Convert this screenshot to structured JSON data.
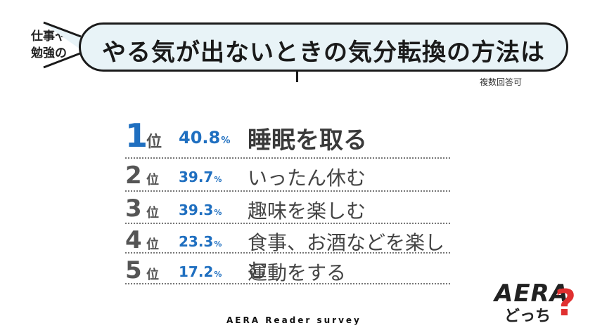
{
  "header": {
    "side_label_line1": "仕事や",
    "side_label_line2": "勉強の",
    "title": "やる気が出ないときの気分転換の方法は",
    "note": "複数回答可"
  },
  "ranking": [
    {
      "rank": "1",
      "unit": "位",
      "value": "40.8",
      "pct": "%",
      "item": "睡眠を取る"
    },
    {
      "rank": "2",
      "unit": "位",
      "value": "39.7",
      "pct": "%",
      "item": "いったん休む"
    },
    {
      "rank": "3",
      "unit": "位",
      "value": "39.3",
      "pct": "%",
      "item": "趣味を楽しむ"
    },
    {
      "rank": "4",
      "unit": "位",
      "value": "23.3",
      "pct": "%",
      "item": "食事、お酒などを楽しむ"
    },
    {
      "rank": "5",
      "unit": "位",
      "value": "17.2",
      "pct": "%",
      "item": "運動をする"
    }
  ],
  "footer": {
    "source": "AERA Reader survey"
  },
  "logo": {
    "brand": "AERA",
    "sub": "どっち",
    "mark": "?"
  },
  "colors": {
    "accent_blue": "#1f6fc0",
    "bubble_bg": "#e8f3f7",
    "logo_red": "#e03030"
  }
}
